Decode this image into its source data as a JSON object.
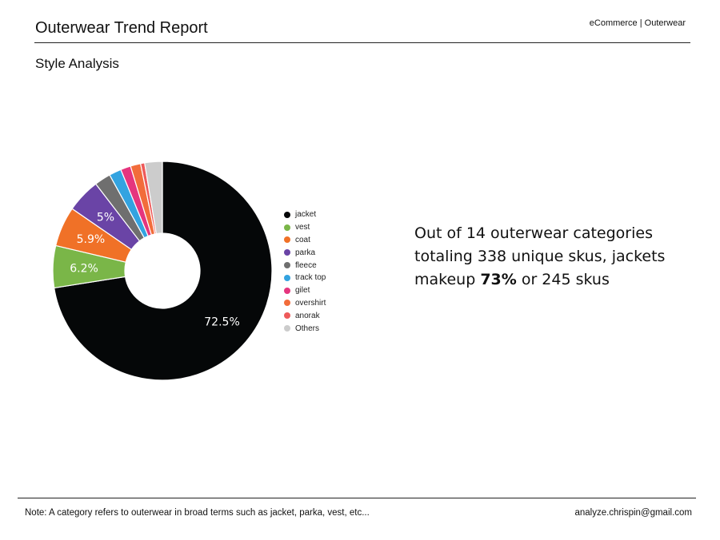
{
  "header": {
    "title": "Outerwear Trend Report",
    "tag": "eCommerce | Outerwear",
    "subtitle": "Style Analysis"
  },
  "summary": {
    "part1": "Out of 14 outerwear categories totaling 338 unique skus, jackets makeup ",
    "highlight": "73%",
    "part2": " or 245 skus"
  },
  "footer": {
    "note": "Note: A category refers to outerwear in broad terms such as jacket, parka, vest, etc...",
    "email": "analyze.chrispin@gmail.com"
  },
  "chart_data": {
    "type": "pie",
    "donut": true,
    "legend_position": "right",
    "slices": [
      {
        "label": "jacket",
        "value": 72.5,
        "color": "#050708",
        "display": "72.5%"
      },
      {
        "label": "vest",
        "value": 6.2,
        "color": "#7ab648",
        "display": "6.2%"
      },
      {
        "label": "coat",
        "value": 5.9,
        "color": "#f07127",
        "display": "5.9%"
      },
      {
        "label": "parka",
        "value": 5.0,
        "color": "#6a44a6",
        "display": "5%"
      },
      {
        "label": "fleece",
        "value": 2.4,
        "color": "#6f6f6f",
        "display": ""
      },
      {
        "label": "track top",
        "value": 1.8,
        "color": "#33a3e0",
        "display": ""
      },
      {
        "label": "gilet",
        "value": 1.5,
        "color": "#e5357e",
        "display": ""
      },
      {
        "label": "overshirt",
        "value": 1.5,
        "color": "#f26c3b",
        "display": ""
      },
      {
        "label": "anorak",
        "value": 0.6,
        "color": "#ee5a5a",
        "display": ""
      },
      {
        "label": "Others",
        "value": 2.6,
        "color": "#cccccc",
        "display": ""
      }
    ]
  }
}
